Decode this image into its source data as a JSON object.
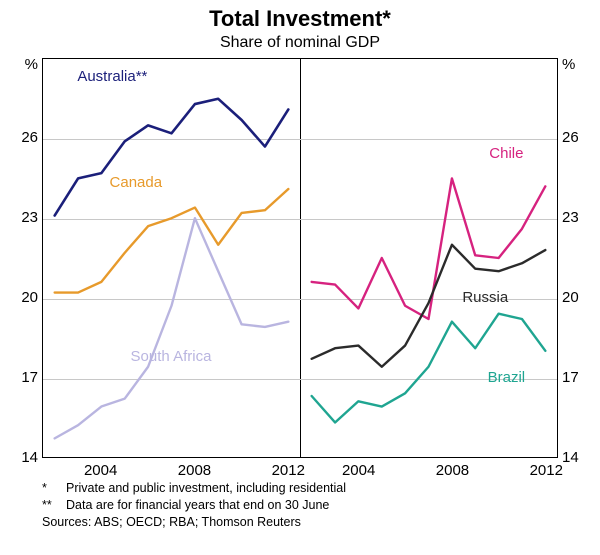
{
  "title": "Total Investment*",
  "subtitle": "Share of nominal GDP",
  "title_fontsize": 22,
  "subtitle_fontsize": 16,
  "axes": {
    "ylim": [
      14,
      29
    ],
    "yticks": [
      14,
      17,
      20,
      23,
      26
    ],
    "y_unit_label": "%",
    "y_fontsize": 15,
    "grid_color": "#c8c8c8",
    "border_color": "#000000",
    "background_color": "#ffffff"
  },
  "panels": {
    "left": {
      "xlim": [
        2001.5,
        2012.5
      ],
      "xticks": [
        2004,
        2008,
        2012
      ],
      "series": [
        {
          "name": "Australia**",
          "color": "#1b1f7a",
          "width": 2.6,
          "label_x": 2004.5,
          "label_y": 28.3,
          "points": [
            [
              2002,
              23.1
            ],
            [
              2003,
              24.5
            ],
            [
              2004,
              24.7
            ],
            [
              2005,
              25.9
            ],
            [
              2006,
              26.5
            ],
            [
              2007,
              26.2
            ],
            [
              2008,
              27.3
            ],
            [
              2009,
              27.5
            ],
            [
              2010,
              26.7
            ],
            [
              2011,
              25.7
            ],
            [
              2012,
              27.1
            ]
          ]
        },
        {
          "name": "Canada",
          "color": "#e79a2b",
          "width": 2.4,
          "label_x": 2005.5,
          "label_y": 24.3,
          "points": [
            [
              2002,
              20.2
            ],
            [
              2003,
              20.2
            ],
            [
              2004,
              20.6
            ],
            [
              2005,
              21.7
            ],
            [
              2006,
              22.7
            ],
            [
              2007,
              23.0
            ],
            [
              2008,
              23.4
            ],
            [
              2009,
              22.0
            ],
            [
              2010,
              23.2
            ],
            [
              2011,
              23.3
            ],
            [
              2012,
              24.1
            ]
          ]
        },
        {
          "name": "South Africa",
          "color": "#b9b5e0",
          "width": 2.4,
          "label_x": 2007.0,
          "label_y": 17.8,
          "points": [
            [
              2002,
              14.7
            ],
            [
              2003,
              15.2
            ],
            [
              2004,
              15.9
            ],
            [
              2005,
              16.2
            ],
            [
              2006,
              17.4
            ],
            [
              2007,
              19.7
            ],
            [
              2008,
              23.0
            ],
            [
              2009,
              21.0
            ],
            [
              2010,
              19.0
            ],
            [
              2011,
              18.9
            ],
            [
              2012,
              19.1
            ]
          ]
        }
      ]
    },
    "right": {
      "xlim": [
        2001.5,
        2012.5
      ],
      "xticks": [
        2004,
        2008,
        2012
      ],
      "series": [
        {
          "name": "Chile",
          "color": "#d6227f",
          "width": 2.4,
          "label_x": 2010.3,
          "label_y": 25.4,
          "points": [
            [
              2002,
              20.6
            ],
            [
              2003,
              20.5
            ],
            [
              2004,
              19.6
            ],
            [
              2005,
              21.5
            ],
            [
              2006,
              19.7
            ],
            [
              2007,
              19.2
            ],
            [
              2008,
              24.5
            ],
            [
              2009,
              21.6
            ],
            [
              2010,
              21.5
            ],
            [
              2011,
              22.6
            ],
            [
              2012,
              24.2
            ]
          ]
        },
        {
          "name": "Russia",
          "color": "#2b2b2b",
          "width": 2.4,
          "label_x": 2009.4,
          "label_y": 20.0,
          "points": [
            [
              2002,
              17.7
            ],
            [
              2003,
              18.1
            ],
            [
              2004,
              18.2
            ],
            [
              2005,
              17.4
            ],
            [
              2006,
              18.2
            ],
            [
              2007,
              19.8
            ],
            [
              2008,
              22.0
            ],
            [
              2009,
              21.1
            ],
            [
              2010,
              21.0
            ],
            [
              2011,
              21.3
            ],
            [
              2012,
              21.8
            ]
          ]
        },
        {
          "name": "Brazil",
          "color": "#1fa591",
          "width": 2.4,
          "label_x": 2010.3,
          "label_y": 17.0,
          "points": [
            [
              2002,
              16.3
            ],
            [
              2003,
              15.3
            ],
            [
              2004,
              16.1
            ],
            [
              2005,
              15.9
            ],
            [
              2006,
              16.4
            ],
            [
              2007,
              17.4
            ],
            [
              2008,
              19.1
            ],
            [
              2009,
              18.1
            ],
            [
              2010,
              19.4
            ],
            [
              2011,
              19.2
            ],
            [
              2012,
              18.0
            ]
          ]
        }
      ]
    }
  },
  "footnotes": {
    "line1_mark": "*",
    "line1_text": "Private and public investment, including residential",
    "line2_mark": "**",
    "line2_text": "Data are for financial years that end on 30 June",
    "sources": "Sources: ABS; OECD; RBA; Thomson Reuters"
  }
}
